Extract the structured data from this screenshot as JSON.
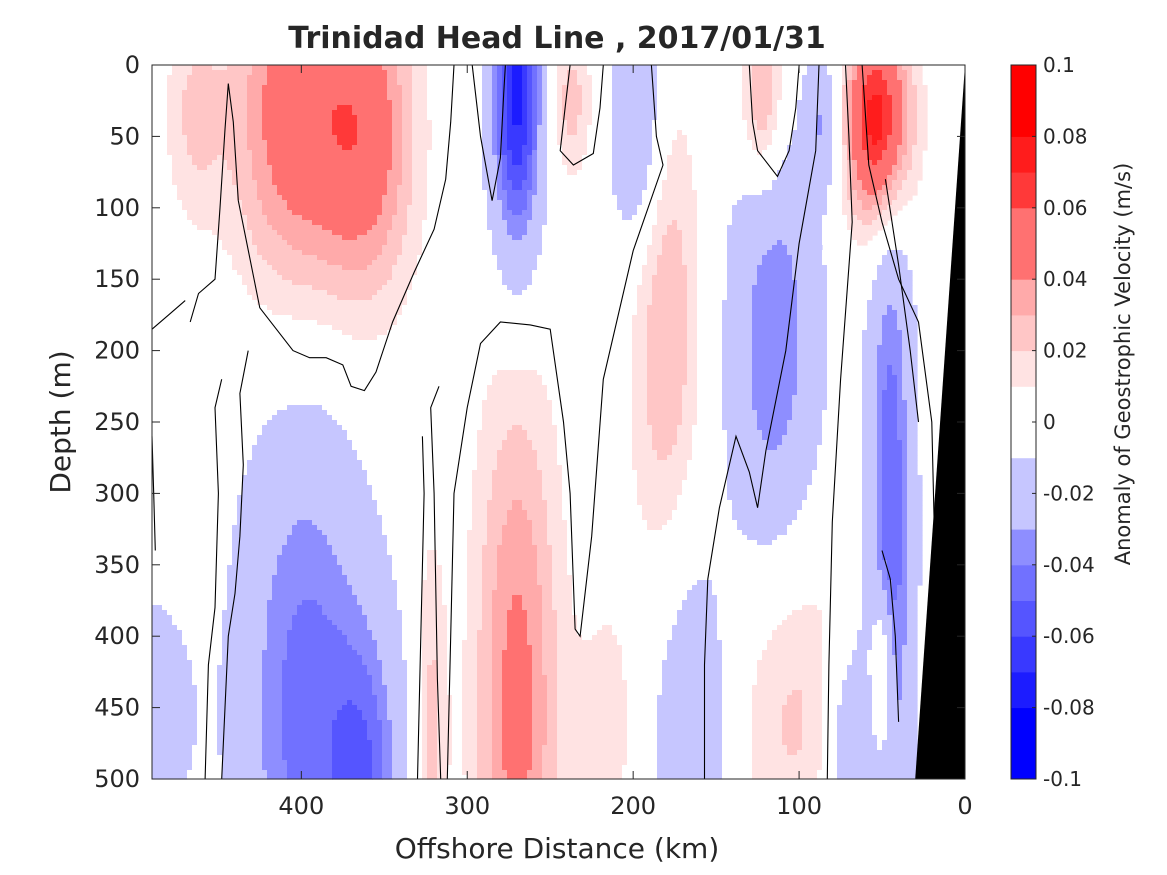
{
  "chart_data": {
    "type": "heatmap",
    "title": "Trinidad Head Line , 2017/01/31",
    "xlabel": "Offshore Distance (km)",
    "ylabel": "Depth (m)",
    "colorbar_label": "Anomaly of Geostrophic Velocity (m/s)",
    "x_direction": "reversed",
    "y_direction": "reversed",
    "xlim": [
      490,
      0
    ],
    "ylim": [
      0,
      500
    ],
    "x_ticks": [
      {
        "value": 400,
        "label": "400"
      },
      {
        "value": 300,
        "label": "300"
      },
      {
        "value": 200,
        "label": "200"
      },
      {
        "value": 100,
        "label": "100"
      },
      {
        "value": 0,
        "label": "0"
      }
    ],
    "y_ticks": [
      {
        "value": 0,
        "label": "0"
      },
      {
        "value": 50,
        "label": "50"
      },
      {
        "value": 100,
        "label": "100"
      },
      {
        "value": 150,
        "label": "150"
      },
      {
        "value": 200,
        "label": "200"
      },
      {
        "value": 250,
        "label": "250"
      },
      {
        "value": 300,
        "label": "300"
      },
      {
        "value": 350,
        "label": "350"
      },
      {
        "value": 400,
        "label": "400"
      },
      {
        "value": 450,
        "label": "450"
      },
      {
        "value": 500,
        "label": "500"
      }
    ],
    "color_scale": {
      "min": -0.1,
      "max": 0.1,
      "step": 0.01,
      "negative_color": "#0000ff",
      "positive_color": "#ff0000",
      "zero_band_color": "#ffffff",
      "tick_labels": [
        {
          "value": 0.1,
          "label": "0.1"
        },
        {
          "value": 0.08,
          "label": "0.08"
        },
        {
          "value": 0.06,
          "label": "0.06"
        },
        {
          "value": 0.04,
          "label": "0.04"
        },
        {
          "value": 0.02,
          "label": "0.02"
        },
        {
          "value": 0,
          "label": "0"
        },
        {
          "value": -0.02,
          "label": "-0.02"
        },
        {
          "value": -0.04,
          "label": "-0.04"
        },
        {
          "value": -0.06,
          "label": "-0.06"
        },
        {
          "value": -0.08,
          "label": "-0.08"
        },
        {
          "value": -0.1,
          "label": "-0.1"
        }
      ]
    },
    "depth_levels": [
      0,
      25,
      50,
      75,
      100,
      125,
      150,
      175,
      200,
      225,
      250,
      275,
      300,
      325,
      350,
      375,
      400,
      425,
      450,
      475,
      500
    ],
    "velocity_features": [
      {
        "x": 465,
        "z": 35,
        "rx": 18,
        "rz": 75,
        "amp": 0.02
      },
      {
        "x": 405,
        "z": 35,
        "rx": 38,
        "rz": 135,
        "amp": 0.05
      },
      {
        "x": 360,
        "z": 50,
        "rx": 30,
        "rz": 120,
        "amp": 0.045
      },
      {
        "x": 270,
        "z": 20,
        "rx": 16,
        "rz": 120,
        "amp": -0.075
      },
      {
        "x": 238,
        "z": 25,
        "rx": 14,
        "rz": 55,
        "amp": 0.025
      },
      {
        "x": 198,
        "z": 40,
        "rx": 16,
        "rz": 90,
        "amp": -0.035
      },
      {
        "x": 180,
        "z": 190,
        "rx": 22,
        "rz": 170,
        "amp": 0.03
      },
      {
        "x": 122,
        "z": 25,
        "rx": 14,
        "rz": 65,
        "amp": 0.04
      },
      {
        "x": 115,
        "z": 200,
        "rx": 28,
        "rz": 170,
        "amp": -0.04
      },
      {
        "x": 85,
        "z": 40,
        "rx": 10,
        "rz": 45,
        "amp": -0.03
      },
      {
        "x": 52,
        "z": 40,
        "rx": 20,
        "rz": 75,
        "amp": 0.085
      },
      {
        "x": 45,
        "z": 330,
        "rx": 14,
        "rz": 260,
        "amp": -0.05
      },
      {
        "x": 490,
        "z": 455,
        "rx": 26,
        "rz": 90,
        "amp": -0.02
      },
      {
        "x": 398,
        "z": 450,
        "rx": 40,
        "rz": 210,
        "amp": -0.045
      },
      {
        "x": 360,
        "z": 500,
        "rx": 22,
        "rz": 110,
        "amp": -0.035
      },
      {
        "x": 322,
        "z": 470,
        "rx": 10,
        "rz": 140,
        "amp": 0.025
      },
      {
        "x": 270,
        "z": 450,
        "rx": 26,
        "rz": 230,
        "amp": 0.045
      },
      {
        "x": 215,
        "z": 470,
        "rx": 20,
        "rz": 110,
        "amp": 0.015
      },
      {
        "x": 165,
        "z": 480,
        "rx": 24,
        "rz": 150,
        "amp": -0.03
      },
      {
        "x": 105,
        "z": 440,
        "rx": 36,
        "rz": 130,
        "amp": 0.025
      },
      {
        "x": 50,
        "z": 430,
        "rx": 7,
        "rz": 60,
        "amp": 0.045
      },
      {
        "x": 70,
        "z": 480,
        "rx": 14,
        "rz": 80,
        "amp": -0.03
      }
    ],
    "zero_contours": [
      [
        [
          467,
          180
        ],
        [
          462,
          160
        ],
        [
          452,
          150
        ],
        [
          449,
          100
        ],
        [
          446,
          45
        ],
        [
          444,
          13
        ],
        [
          441,
          40
        ],
        [
          438,
          95
        ],
        [
          425,
          170
        ],
        [
          415,
          185
        ],
        [
          405,
          200
        ],
        [
          395,
          205
        ],
        [
          385,
          205
        ],
        [
          375,
          210
        ],
        [
          370,
          225
        ],
        [
          362,
          228
        ],
        [
          355,
          215
        ],
        [
          345,
          180
        ],
        [
          332,
          145
        ],
        [
          320,
          115
        ],
        [
          313,
          80
        ],
        [
          310,
          40
        ],
        [
          308,
          0
        ]
      ],
      [
        [
          490,
          185
        ],
        [
          480,
          175
        ],
        [
          470,
          165
        ]
      ],
      [
        [
          297,
          0
        ],
        [
          292,
          50
        ],
        [
          285,
          95
        ],
        [
          280,
          65
        ],
        [
          278,
          20
        ],
        [
          277,
          0
        ]
      ],
      [
        [
          238,
          0
        ],
        [
          241,
          30
        ],
        [
          244,
          60
        ],
        [
          236,
          70
        ],
        [
          224,
          62
        ],
        [
          220,
          30
        ],
        [
          218,
          0
        ]
      ],
      [
        [
          189,
          0
        ],
        [
          186,
          50
        ],
        [
          182,
          70
        ],
        [
          200,
          130
        ],
        [
          218,
          220
        ],
        [
          225,
          330
        ],
        [
          232,
          400
        ],
        [
          235,
          395
        ],
        [
          238,
          300
        ],
        [
          242,
          250
        ],
        [
          250,
          185
        ],
        [
          262,
          182
        ],
        [
          280,
          180
        ],
        [
          292,
          195
        ],
        [
          300,
          240
        ],
        [
          308,
          300
        ],
        [
          310,
          400
        ],
        [
          312,
          500
        ]
      ],
      [
        [
          130,
          0
        ],
        [
          128,
          40
        ],
        [
          125,
          60
        ],
        [
          113,
          78
        ],
        [
          106,
          60
        ],
        [
          102,
          30
        ],
        [
          100,
          0
        ]
      ],
      [
        [
          88,
          0
        ],
        [
          90,
          60
        ],
        [
          100,
          125
        ],
        [
          108,
          200
        ],
        [
          120,
          270
        ],
        [
          125,
          310
        ],
        [
          130,
          285
        ],
        [
          138,
          260
        ],
        [
          148,
          310
        ],
        [
          155,
          360
        ],
        [
          157,
          420
        ],
        [
          157,
          500
        ]
      ],
      [
        [
          72,
          0
        ],
        [
          70,
          50
        ],
        [
          68,
          110
        ],
        [
          75,
          220
        ],
        [
          80,
          320
        ],
        [
          82,
          420
        ],
        [
          83,
          500
        ]
      ],
      [
        [
          62,
          0
        ],
        [
          58,
          70
        ],
        [
          50,
          110
        ],
        [
          40,
          150
        ],
        [
          28,
          180
        ],
        [
          20,
          250
        ],
        [
          15,
          500
        ]
      ],
      [
        [
          48,
          80
        ],
        [
          40,
          140
        ],
        [
          33,
          200
        ],
        [
          28,
          250
        ]
      ],
      [
        [
          448,
          500
        ],
        [
          446,
          450
        ],
        [
          444,
          400
        ],
        [
          440,
          370
        ],
        [
          437,
          330
        ],
        [
          435,
          280
        ],
        [
          437,
          230
        ],
        [
          432,
          200
        ]
      ],
      [
        [
          458,
          500
        ],
        [
          456,
          420
        ],
        [
          452,
          380
        ],
        [
          450,
          300
        ],
        [
          452,
          240
        ],
        [
          448,
          220
        ]
      ],
      [
        [
          316,
          500
        ],
        [
          318,
          430
        ],
        [
          320,
          300
        ],
        [
          322,
          240
        ],
        [
          317,
          225
        ]
      ],
      [
        [
          330,
          500
        ],
        [
          328,
          400
        ],
        [
          326,
          300
        ],
        [
          327,
          260
        ]
      ],
      [
        [
          490,
          260
        ],
        [
          489,
          300
        ],
        [
          488,
          340
        ]
      ],
      [
        [
          50,
          340
        ],
        [
          45,
          360
        ],
        [
          42,
          400
        ],
        [
          40,
          460
        ]
      ]
    ],
    "coast_wedge": [
      [
        0,
        0
      ],
      [
        30,
        500
      ],
      [
        0,
        500
      ]
    ]
  }
}
